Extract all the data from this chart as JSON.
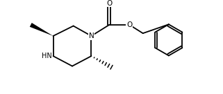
{
  "bg_color": "#ffffff",
  "line_color": "#000000",
  "lw": 1.3,
  "fig_width": 3.21,
  "fig_height": 1.36,
  "dpi": 100,
  "xlim": [
    0,
    9.5
  ],
  "ylim": [
    0,
    4.0
  ]
}
